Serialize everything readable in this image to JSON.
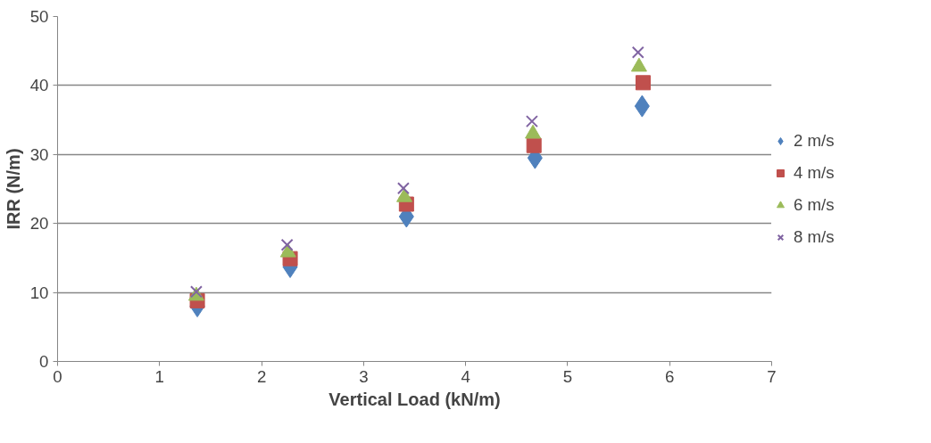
{
  "chart_data": {
    "type": "scatter",
    "xlabel": "Vertical Load (kN/m)",
    "ylabel": "IRR (N/m)",
    "xlim": [
      0,
      7
    ],
    "ylim": [
      0,
      50
    ],
    "xticks": [
      0,
      1,
      2,
      3,
      4,
      5,
      6,
      7
    ],
    "yticks": [
      0,
      10,
      20,
      30,
      40,
      50
    ],
    "grid": "y",
    "legend": "right",
    "series": [
      {
        "name": "2 m/s",
        "color": "#4f81bd",
        "marker": "diamond",
        "x": [
          1.37,
          2.28,
          3.42,
          4.68,
          5.73
        ],
        "values": [
          8.0,
          13.7,
          21.0,
          29.5,
          37.0
        ]
      },
      {
        "name": "4 m/s",
        "color": "#c0504d",
        "marker": "square",
        "x": [
          1.37,
          2.28,
          3.42,
          4.67,
          5.74
        ],
        "values": [
          8.8,
          14.9,
          22.8,
          31.3,
          40.4
        ]
      },
      {
        "name": "6 m/s",
        "color": "#9bbb59",
        "marker": "triangle",
        "x": [
          1.36,
          2.26,
          3.4,
          4.66,
          5.7
        ],
        "values": [
          9.5,
          15.8,
          23.8,
          33.0,
          42.7
        ]
      },
      {
        "name": "8 m/s",
        "color": "#8064a2",
        "marker": "cross",
        "x": [
          1.36,
          2.25,
          3.39,
          4.65,
          5.69
        ],
        "values": [
          10.1,
          16.9,
          25.1,
          34.8,
          44.8
        ]
      }
    ]
  }
}
